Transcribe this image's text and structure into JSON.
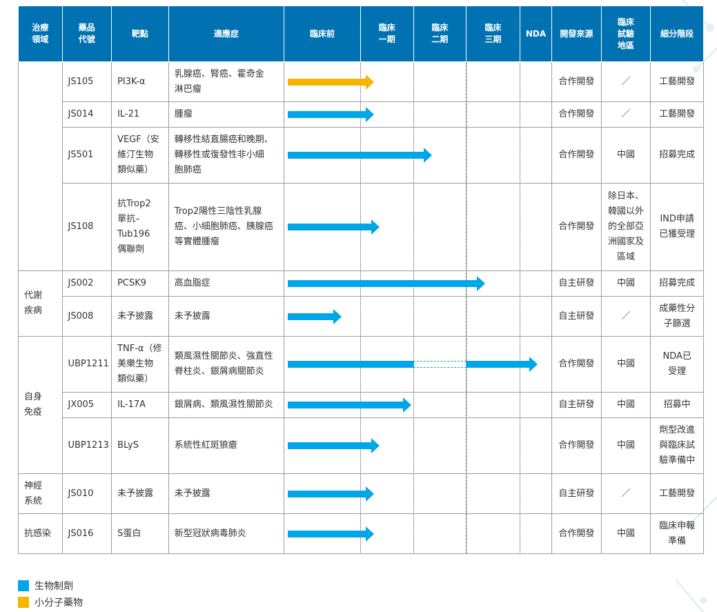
{
  "headers": [
    "治療\n領域",
    "藥品\n代號",
    "靶點",
    "適應症",
    "臨床前",
    "臨床\n一期",
    "臨床\n二期",
    "臨床\n三期",
    "NDA",
    "開發來源",
    "臨床\n試驗\n地區",
    "細分階段"
  ],
  "colors": {
    "header_bg": "#0072b1",
    "biologic": "#00a6e8",
    "small_molecule": "#f7b400"
  },
  "areas": [
    "",
    "代謝\n疾病",
    "自身\n免疫",
    "神經\n系統",
    "抗感染"
  ],
  "rows": [
    {
      "code": "JS105",
      "target": "PI3K-α",
      "indication": "乳腺癌、腎癌、霍奇金\n淋巴瘤",
      "source": "合作開發",
      "region": "／",
      "stage": "工藝開發",
      "type": "small_molecule",
      "progress": 1.25
    },
    {
      "code": "JS014",
      "target": "IL-21",
      "indication": "腫瘤",
      "source": "合作開發",
      "region": "／",
      "stage": "工藝開發",
      "type": "biologic",
      "progress": 1.25
    },
    {
      "code": "JS501",
      "target": "VEGF（安\n維汀生物\n類似藥）",
      "indication": "轉移性結直腸癌和晚期、\n轉移性或復發性非小細\n胞肺癌",
      "source": "合作開發",
      "region": "中國",
      "stage": "招募完成",
      "type": "biologic",
      "progress": 2.35
    },
    {
      "code": "JS108",
      "target": "抗Trop2\n單抗–\nTub196\n偶聯劑",
      "indication": "Trop2陽性三陰性乳腺\n癌、小細胞肺癌、胰腺癌\n等實體腫瘤",
      "source": "合作開發",
      "region": "除日本、\n韓國以外\n的全部亞\n洲國家及\n區域",
      "stage": "IND申請\n已獲受理",
      "type": "biologic",
      "progress": 1.35
    },
    {
      "code": "JS002",
      "target": "PCSK9",
      "indication": "高血脂症",
      "source": "自主研發",
      "region": "中國",
      "stage": "招募完成",
      "type": "biologic",
      "progress": 3.35
    },
    {
      "code": "JS008",
      "target": "未予披露",
      "indication": "未予披露",
      "source": "自主研發",
      "region": "／",
      "stage": "成藥性分\n子篩選",
      "type": "biologic",
      "progress": 0.75
    },
    {
      "code": "UBP1211",
      "target": "TNF-α（修\n美樂生物\n類似藥）",
      "indication": "類風濕性關節炎、強直性\n脊柱炎、銀屑病關節炎",
      "source": "合作開發",
      "region": "中國",
      "stage": "NDA已\n受理",
      "type": "biologic",
      "progress": 4.55
    },
    {
      "code": "JX005",
      "target": "IL-17A",
      "indication": "銀屑病、類風濕性關節炎",
      "source": "自主研發",
      "region": "中國",
      "stage": "招募中",
      "type": "biologic",
      "progress": 1.95
    },
    {
      "code": "UBP1213",
      "target": "BLyS",
      "indication": "系統性紅斑狼瘡",
      "source": "合作開發",
      "region": "中國",
      "stage": "劑型改進\n與臨床試\n驗準備中",
      "type": "biologic",
      "progress": 1.35
    },
    {
      "code": "JS010",
      "target": "未予披露",
      "indication": "未予披露",
      "source": "自主研發",
      "region": "／",
      "stage": "工藝開發",
      "type": "biologic",
      "progress": 1.25
    },
    {
      "code": "JS016",
      "target": "S蛋白",
      "indication": "新型冠狀病毒肺炎",
      "source": "合作開發",
      "region": "中國",
      "stage": "臨床申報\n準備",
      "type": "biologic",
      "progress": 1.25
    }
  ],
  "legend": [
    {
      "label": "生物制劑",
      "color": "#00a6e8"
    },
    {
      "label": "小分子藥物",
      "color": "#f7b400"
    }
  ]
}
